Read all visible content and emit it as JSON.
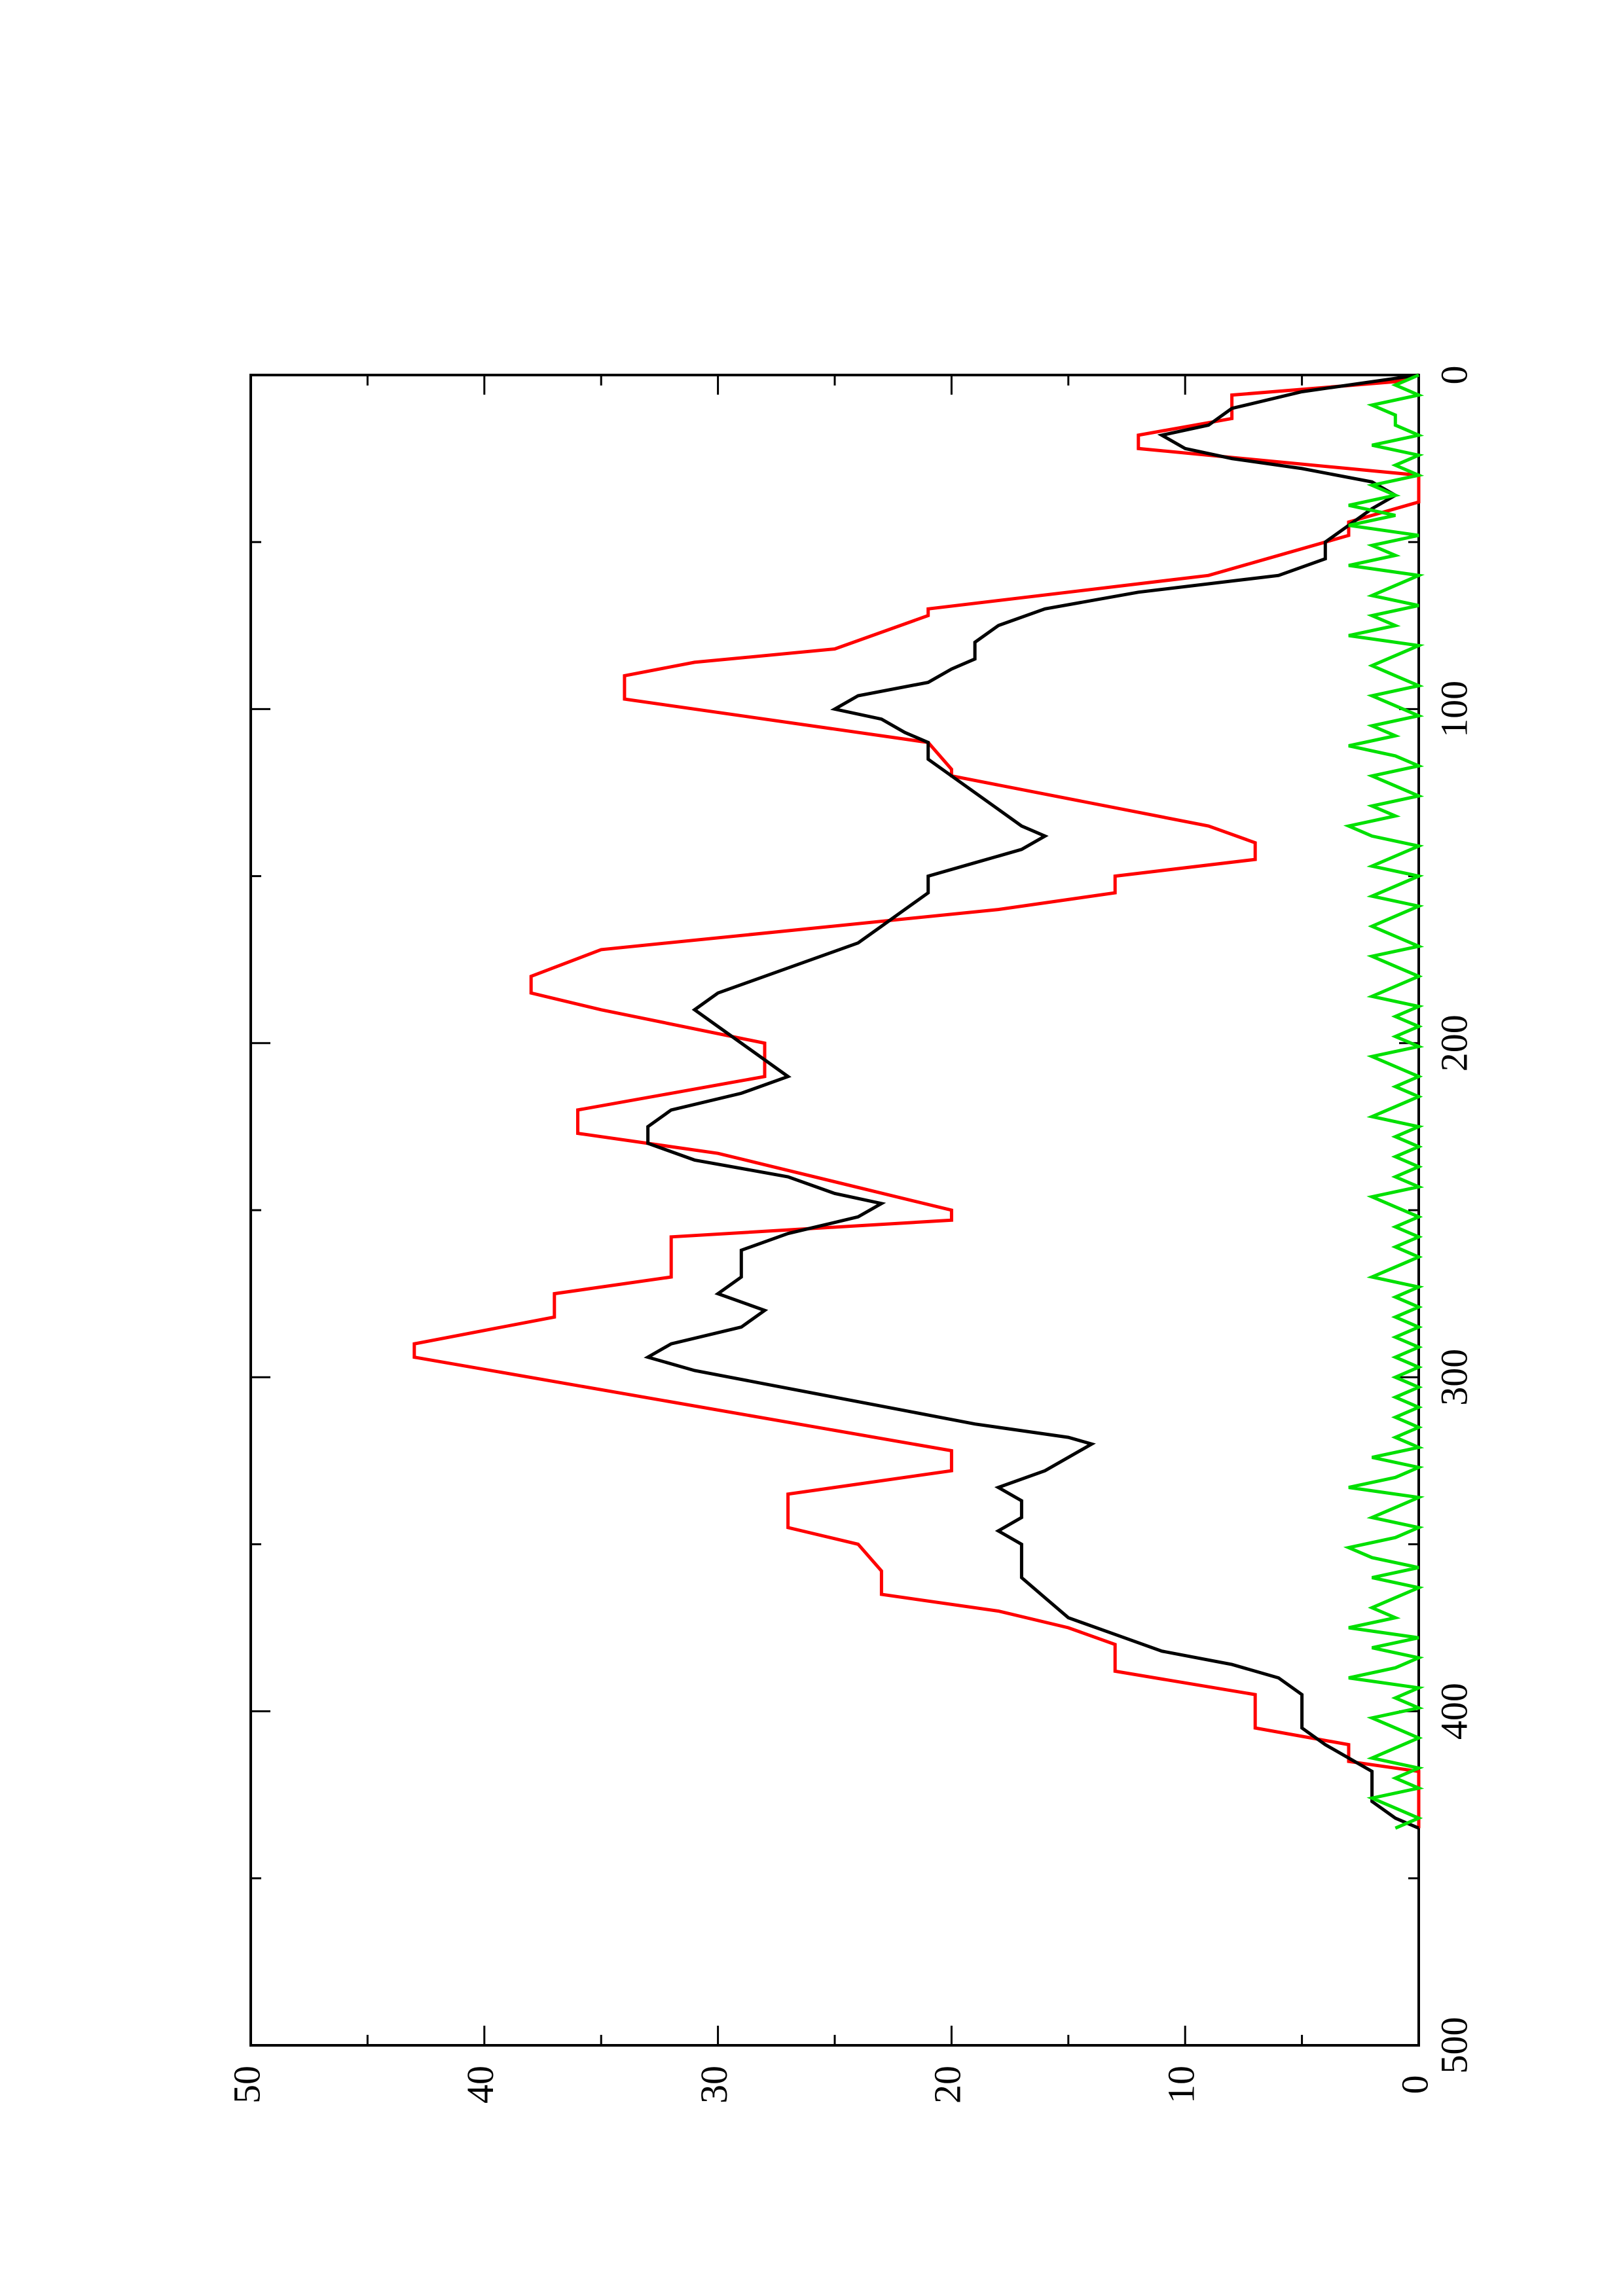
{
  "chart_data": {
    "type": "line",
    "orientation": "rotated-90-ccw",
    "title": "",
    "xlabel": "",
    "ylabel": "",
    "xlim": [
      0,
      500
    ],
    "ylim": [
      0,
      50
    ],
    "grid": false,
    "x_ticks": [
      "0",
      "100",
      "200",
      "300",
      "400",
      "500"
    ],
    "y_ticks": [
      "0",
      "10",
      "20",
      "30",
      "40",
      "50"
    ],
    "series": [
      {
        "color": "#ff0000",
        "style": "step-ramp",
        "points": [
          [
            0,
            0
          ],
          [
            2,
            1
          ],
          [
            6,
            8
          ],
          [
            13,
            8
          ],
          [
            18,
            12
          ],
          [
            22,
            12
          ],
          [
            30,
            0
          ],
          [
            38,
            0
          ],
          [
            44,
            3
          ],
          [
            48,
            3
          ],
          [
            56,
            7
          ],
          [
            60,
            9
          ],
          [
            70,
            21
          ],
          [
            72,
            21
          ],
          [
            82,
            25
          ],
          [
            86,
            31
          ],
          [
            90,
            34
          ],
          [
            97,
            34
          ],
          [
            110,
            21
          ],
          [
            118,
            20
          ],
          [
            120,
            20
          ],
          [
            135,
            9
          ],
          [
            140,
            7
          ],
          [
            145,
            7
          ],
          [
            150,
            13
          ],
          [
            155,
            13
          ],
          [
            160,
            18
          ],
          [
            172,
            35
          ],
          [
            180,
            38
          ],
          [
            185,
            38
          ],
          [
            190,
            35
          ],
          [
            200,
            28
          ],
          [
            210,
            28
          ],
          [
            215,
            32
          ],
          [
            220,
            36
          ],
          [
            227,
            36
          ],
          [
            233,
            30
          ],
          [
            250,
            20
          ],
          [
            253,
            20
          ],
          [
            258,
            32
          ],
          [
            270,
            32
          ],
          [
            275,
            37
          ],
          [
            282,
            37
          ],
          [
            290,
            43
          ],
          [
            294,
            43
          ],
          [
            322,
            20
          ],
          [
            328,
            20
          ],
          [
            335,
            27
          ],
          [
            345,
            27
          ],
          [
            350,
            24
          ],
          [
            358,
            23
          ],
          [
            365,
            23
          ],
          [
            370,
            18
          ],
          [
            375,
            15
          ],
          [
            380,
            13
          ],
          [
            388,
            13
          ],
          [
            395,
            7
          ],
          [
            405,
            7
          ],
          [
            410,
            3
          ],
          [
            415,
            3
          ],
          [
            418,
            0
          ],
          [
            435,
            0
          ]
        ]
      },
      {
        "color": "#000000",
        "style": "line",
        "points": [
          [
            0,
            0
          ],
          [
            5,
            5
          ],
          [
            10,
            8
          ],
          [
            15,
            9
          ],
          [
            18,
            11
          ],
          [
            22,
            10
          ],
          [
            25,
            8
          ],
          [
            28,
            5
          ],
          [
            32,
            2
          ],
          [
            36,
            1
          ],
          [
            40,
            2
          ],
          [
            45,
            3
          ],
          [
            50,
            4
          ],
          [
            55,
            4
          ],
          [
            60,
            6
          ],
          [
            65,
            12
          ],
          [
            70,
            16
          ],
          [
            75,
            18
          ],
          [
            80,
            19
          ],
          [
            85,
            19
          ],
          [
            88,
            20
          ],
          [
            92,
            21
          ],
          [
            96,
            24
          ],
          [
            100,
            25
          ],
          [
            103,
            23
          ],
          [
            107,
            22
          ],
          [
            110,
            21
          ],
          [
            115,
            21
          ],
          [
            120,
            20
          ],
          [
            125,
            19
          ],
          [
            130,
            18
          ],
          [
            135,
            17
          ],
          [
            138,
            16
          ],
          [
            142,
            17
          ],
          [
            146,
            19
          ],
          [
            150,
            21
          ],
          [
            155,
            21
          ],
          [
            160,
            22
          ],
          [
            165,
            23
          ],
          [
            170,
            24
          ],
          [
            175,
            26
          ],
          [
            180,
            28
          ],
          [
            185,
            30
          ],
          [
            190,
            31
          ],
          [
            195,
            30
          ],
          [
            200,
            29
          ],
          [
            205,
            28
          ],
          [
            210,
            27
          ],
          [
            215,
            29
          ],
          [
            220,
            32
          ],
          [
            225,
            33
          ],
          [
            230,
            33
          ],
          [
            235,
            31
          ],
          [
            240,
            27
          ],
          [
            245,
            25
          ],
          [
            248,
            23
          ],
          [
            252,
            24
          ],
          [
            257,
            27
          ],
          [
            262,
            29
          ],
          [
            265,
            29
          ],
          [
            270,
            29
          ],
          [
            275,
            30
          ],
          [
            280,
            28
          ],
          [
            285,
            29
          ],
          [
            290,
            32
          ],
          [
            294,
            33
          ],
          [
            298,
            31
          ],
          [
            302,
            28
          ],
          [
            306,
            25
          ],
          [
            310,
            22
          ],
          [
            314,
            19
          ],
          [
            318,
            15
          ],
          [
            320,
            14
          ],
          [
            324,
            15
          ],
          [
            328,
            16
          ],
          [
            333,
            18
          ],
          [
            337,
            17
          ],
          [
            342,
            17
          ],
          [
            346,
            18
          ],
          [
            350,
            17
          ],
          [
            355,
            17
          ],
          [
            360,
            17
          ],
          [
            366,
            16
          ],
          [
            372,
            15
          ],
          [
            377,
            13
          ],
          [
            382,
            11
          ],
          [
            386,
            8
          ],
          [
            390,
            6
          ],
          [
            395,
            5
          ],
          [
            400,
            5
          ],
          [
            405,
            5
          ],
          [
            410,
            4
          ],
          [
            414,
            3
          ],
          [
            418,
            2
          ],
          [
            422,
            2
          ],
          [
            427,
            2
          ],
          [
            432,
            1
          ],
          [
            435,
            0
          ]
        ]
      },
      {
        "color": "#00e000",
        "style": "noisy-line",
        "points": [
          [
            0,
            0
          ],
          [
            3,
            1
          ],
          [
            6,
            0
          ],
          [
            9,
            2
          ],
          [
            12,
            1
          ],
          [
            15,
            1
          ],
          [
            18,
            0
          ],
          [
            21,
            2
          ],
          [
            24,
            0
          ],
          [
            27,
            1
          ],
          [
            30,
            0
          ],
          [
            33,
            2
          ],
          [
            36,
            1
          ],
          [
            39,
            3
          ],
          [
            42,
            1
          ],
          [
            45,
            3
          ],
          [
            48,
            0
          ],
          [
            51,
            2
          ],
          [
            54,
            1
          ],
          [
            57,
            3
          ],
          [
            60,
            0
          ],
          [
            63,
            1
          ],
          [
            66,
            2
          ],
          [
            69,
            0
          ],
          [
            72,
            2
          ],
          [
            75,
            1
          ],
          [
            78,
            3
          ],
          [
            81,
            0
          ],
          [
            84,
            1
          ],
          [
            87,
            2
          ],
          [
            90,
            1
          ],
          [
            93,
            0
          ],
          [
            96,
            2
          ],
          [
            99,
            1
          ],
          [
            102,
            0
          ],
          [
            105,
            2
          ],
          [
            108,
            1
          ],
          [
            111,
            3
          ],
          [
            114,
            1
          ],
          [
            117,
            0
          ],
          [
            120,
            2
          ],
          [
            123,
            1
          ],
          [
            126,
            0
          ],
          [
            129,
            2
          ],
          [
            132,
            1
          ],
          [
            135,
            3
          ],
          [
            138,
            2
          ],
          [
            141,
            0
          ],
          [
            144,
            1
          ],
          [
            147,
            2
          ],
          [
            150,
            0
          ],
          [
            153,
            1
          ],
          [
            156,
            2
          ],
          [
            159,
            0
          ],
          [
            162,
            1
          ],
          [
            165,
            2
          ],
          [
            168,
            1
          ],
          [
            171,
            0
          ],
          [
            174,
            2
          ],
          [
            177,
            1
          ],
          [
            180,
            0
          ],
          [
            183,
            1
          ],
          [
            186,
            2
          ],
          [
            189,
            0
          ],
          [
            192,
            1
          ],
          [
            195,
            0
          ],
          [
            198,
            1
          ],
          [
            201,
            0
          ],
          [
            204,
            2
          ],
          [
            207,
            1
          ],
          [
            210,
            0
          ],
          [
            213,
            1
          ],
          [
            216,
            0
          ],
          [
            219,
            1
          ],
          [
            222,
            2
          ],
          [
            225,
            0
          ],
          [
            228,
            1
          ],
          [
            231,
            0
          ],
          [
            234,
            1
          ],
          [
            237,
            0
          ],
          [
            240,
            1
          ],
          [
            243,
            0
          ],
          [
            246,
            2
          ],
          [
            249,
            1
          ],
          [
            252,
            0
          ],
          [
            255,
            1
          ],
          [
            258,
            0
          ],
          [
            261,
            1
          ],
          [
            264,
            0
          ],
          [
            267,
            1
          ],
          [
            270,
            2
          ],
          [
            273,
            0
          ],
          [
            276,
            1
          ],
          [
            279,
            0
          ],
          [
            282,
            1
          ],
          [
            285,
            0
          ],
          [
            288,
            1
          ],
          [
            291,
            0
          ],
          [
            294,
            1
          ],
          [
            297,
            0
          ],
          [
            300,
            1
          ],
          [
            303,
            0
          ],
          [
            306,
            1
          ],
          [
            309,
            0
          ],
          [
            312,
            1
          ],
          [
            315,
            0
          ],
          [
            318,
            1
          ],
          [
            321,
            0
          ],
          [
            324,
            2
          ],
          [
            327,
            0
          ],
          [
            330,
            1
          ],
          [
            333,
            3
          ],
          [
            336,
            0
          ],
          [
            339,
            1
          ],
          [
            342,
            2
          ],
          [
            345,
            0
          ],
          [
            348,
            1
          ],
          [
            351,
            3
          ],
          [
            354,
            2
          ],
          [
            357,
            0
          ],
          [
            360,
            2
          ],
          [
            363,
            0
          ],
          [
            366,
            1
          ],
          [
            369,
            2
          ],
          [
            372,
            1
          ],
          [
            375,
            3
          ],
          [
            378,
            0
          ],
          [
            381,
            2
          ],
          [
            384,
            0
          ],
          [
            387,
            1
          ],
          [
            390,
            3
          ],
          [
            393,
            0
          ],
          [
            396,
            1
          ],
          [
            399,
            0
          ],
          [
            402,
            2
          ],
          [
            405,
            1
          ],
          [
            408,
            0
          ],
          [
            411,
            1
          ],
          [
            414,
            2
          ],
          [
            417,
            0
          ],
          [
            420,
            1
          ],
          [
            423,
            0
          ],
          [
            426,
            2
          ],
          [
            429,
            1
          ],
          [
            432,
            0
          ],
          [
            435,
            1
          ]
        ]
      }
    ]
  }
}
